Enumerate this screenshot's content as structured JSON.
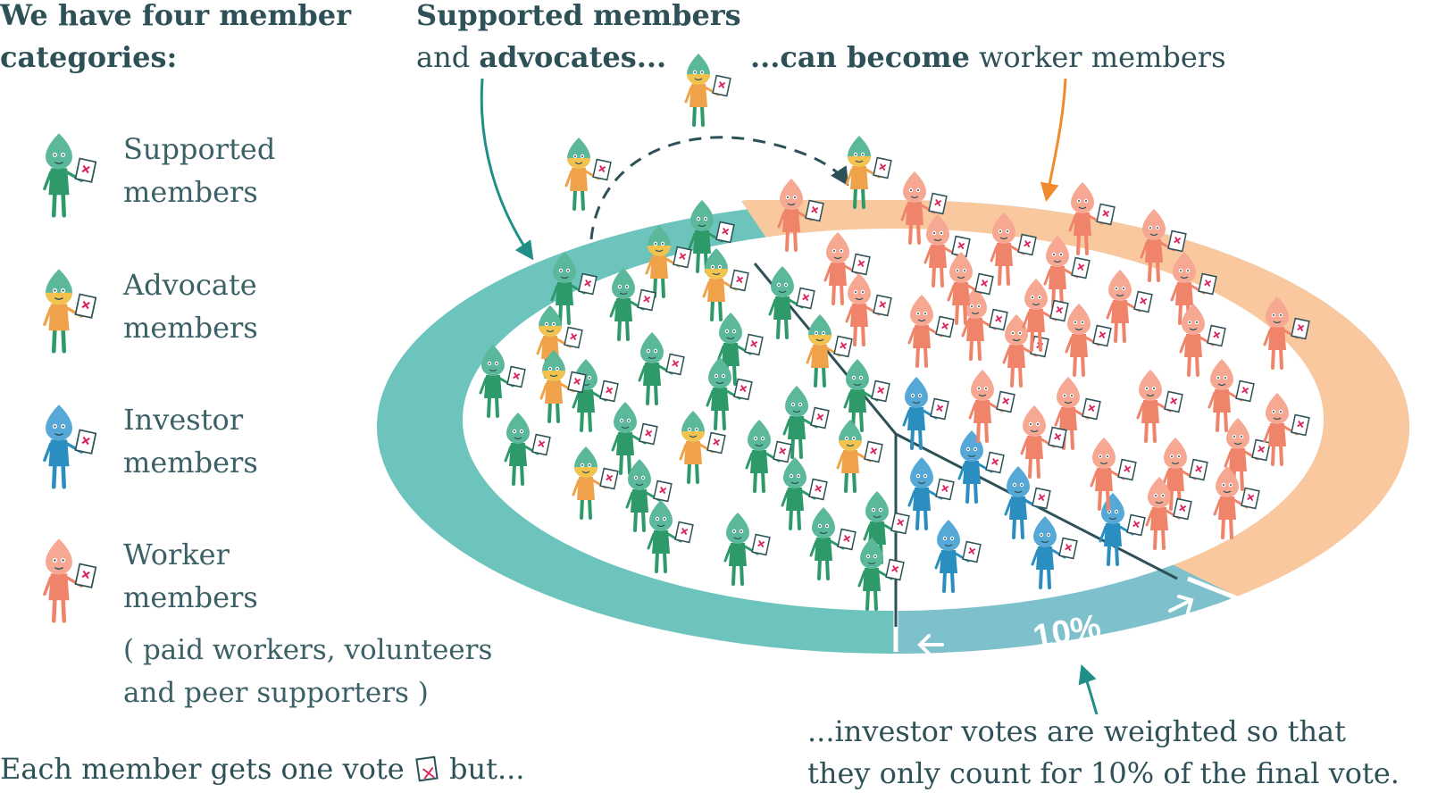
{
  "intro": {
    "line1": "We have four member",
    "line2": "categories:"
  },
  "top_left_caption": {
    "line1": "Supported members",
    "line2_plain": "and ",
    "line2_bold": "advocates..."
  },
  "top_right_caption": {
    "bold": "...can become",
    "plain": " worker members"
  },
  "legend": [
    {
      "line1": "Supported",
      "line2": "members",
      "color": "#2e9a6a",
      "head": "#5cb89a"
    },
    {
      "line1": "Advocate",
      "line2": "members",
      "color": "#f0a24a",
      "head": "#5cb89a"
    },
    {
      "line1": "Investor",
      "line2": "members",
      "color": "#2a8fc0",
      "head": "#56a9d6"
    },
    {
      "line1": "Worker",
      "line2": "members",
      "color": "#f0846a",
      "head": "#f6a892"
    }
  ],
  "worker_note": {
    "line1": "( paid workers, volunteers",
    "line2": "and peer supporters )"
  },
  "bottom_left": {
    "before": "Each member gets one vote",
    "after": "but..."
  },
  "bottom_right": {
    "line1": "...investor votes are weighted so that",
    "line2": "they only count for 10% of the final vote."
  },
  "ring_label": "10%",
  "colors": {
    "text": "#2d5157",
    "ring_teal": "#6cc4bc",
    "ring_peach": "#f9c89e",
    "ring_blue": "#7ec1cc",
    "supported": "#2e9a6a",
    "advocate": "#f0a24a",
    "investor": "#2a8fc0",
    "worker": "#f0846a",
    "ballot_x": "#d9205a"
  }
}
